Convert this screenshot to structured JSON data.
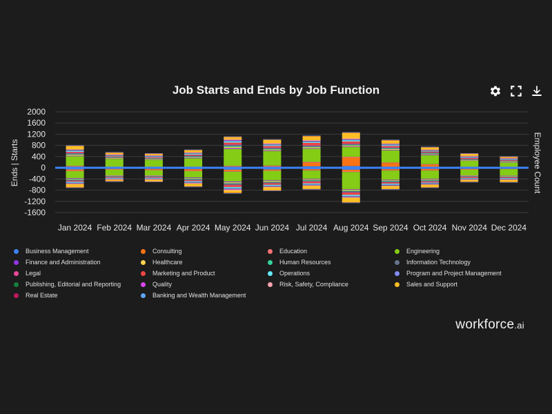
{
  "colors": {
    "background": "#1c1c1c",
    "grid": "#3c3c3c",
    "zero_line": "#3b82f6",
    "text": "#e6e6e6"
  },
  "header": {
    "title": "Job Starts and Ends by Job Function"
  },
  "toolbar": {
    "settings_icon": "gear-icon",
    "fullscreen_icon": "expand-icon",
    "download_icon": "download-icon"
  },
  "brand": {
    "name": "workforce",
    "suffix": ".ai"
  },
  "chart_data": {
    "type": "bar",
    "stacked": true,
    "title": "Job Starts and Ends by Job Function",
    "xlabel": "",
    "ylabel": "Ends | Starts",
    "y2label": "Employee Count",
    "ylim": [
      -1600,
      2000
    ],
    "yticks": [
      2000,
      1600,
      1200,
      800,
      400,
      0,
      -400,
      -800,
      -1200,
      -1600
    ],
    "categories": [
      "Jan 2024",
      "Feb 2024",
      "Mar 2024",
      "Apr 2024",
      "May 2024",
      "Jun 2024",
      "Jul 2024",
      "Aug 2024",
      "Sep 2024",
      "Oct 2024",
      "Nov 2024",
      "Dec 2024"
    ],
    "legend_position": "bottom",
    "series": [
      {
        "name": "Business Management",
        "color": "#3b82f6",
        "starts": [
          40,
          20,
          20,
          20,
          30,
          40,
          50,
          60,
          40,
          30,
          20,
          20
        ],
        "ends": [
          -60,
          -40,
          -40,
          -50,
          -70,
          -60,
          -50,
          -70,
          -50,
          -40,
          -40,
          -20
        ]
      },
      {
        "name": "Consulting",
        "color": "#f97316",
        "starts": [
          10,
          10,
          10,
          10,
          20,
          20,
          130,
          300,
          130,
          80,
          10,
          10
        ],
        "ends": [
          -40,
          -20,
          -30,
          -50,
          -40,
          -30,
          -30,
          -50,
          -30,
          -40,
          -20,
          -20
        ]
      },
      {
        "name": "Education",
        "color": "#f87171",
        "starts": [
          20,
          10,
          10,
          10,
          20,
          20,
          30,
          30,
          20,
          20,
          10,
          10
        ],
        "ends": [
          -20,
          -10,
          -20,
          -20,
          -30,
          -20,
          -20,
          -30,
          -20,
          -20,
          -10,
          -10
        ]
      },
      {
        "name": "Engineering",
        "color": "#84cc16",
        "starts": [
          340,
          280,
          250,
          300,
          600,
          520,
          470,
          350,
          430,
          320,
          210,
          150
        ],
        "ends": [
          -250,
          -200,
          -180,
          -230,
          -350,
          -340,
          -300,
          -620,
          -330,
          -300,
          -200,
          -230
        ]
      },
      {
        "name": "Finance and Administration",
        "color": "#9333ea",
        "starts": [
          20,
          10,
          10,
          20,
          30,
          20,
          20,
          20,
          20,
          20,
          10,
          10
        ],
        "ends": [
          -20,
          -10,
          -10,
          -20,
          -30,
          -20,
          -20,
          -20,
          -20,
          -20,
          -10,
          -10
        ]
      },
      {
        "name": "Healthcare",
        "color": "#fcd34d",
        "starts": [
          30,
          20,
          20,
          20,
          40,
          30,
          30,
          30,
          30,
          20,
          20,
          20
        ],
        "ends": [
          -20,
          -20,
          -20,
          -20,
          -30,
          -30,
          -20,
          -30,
          -20,
          -20,
          -20,
          -20
        ]
      },
      {
        "name": "Human Resources",
        "color": "#34d399",
        "starts": [
          20,
          10,
          10,
          20,
          30,
          20,
          20,
          20,
          20,
          20,
          10,
          10
        ],
        "ends": [
          -20,
          -10,
          -10,
          -20,
          -20,
          -20,
          -20,
          -20,
          -20,
          -20,
          -10,
          -10
        ]
      },
      {
        "name": "Information Technology",
        "color": "#64748b",
        "starts": [
          40,
          20,
          20,
          30,
          50,
          40,
          40,
          40,
          30,
          30,
          20,
          20
        ],
        "ends": [
          -30,
          -20,
          -20,
          -30,
          -40,
          -30,
          -30,
          -40,
          -30,
          -30,
          -20,
          -20
        ]
      },
      {
        "name": "Legal",
        "color": "#ec4899",
        "starts": [
          20,
          10,
          10,
          10,
          20,
          20,
          20,
          20,
          20,
          10,
          10,
          10
        ],
        "ends": [
          -10,
          -10,
          -10,
          -10,
          -20,
          -10,
          -10,
          -20,
          -10,
          -10,
          -10,
          -10
        ]
      },
      {
        "name": "Marketing and Product",
        "color": "#ef4444",
        "starts": [
          30,
          20,
          20,
          30,
          60,
          50,
          80,
          70,
          40,
          30,
          30,
          20
        ],
        "ends": [
          -30,
          -20,
          -20,
          -30,
          -60,
          -50,
          -60,
          -70,
          -40,
          -30,
          -30,
          -20
        ]
      },
      {
        "name": "Operations",
        "color": "#67e8f9",
        "starts": [
          30,
          20,
          20,
          30,
          40,
          30,
          30,
          40,
          30,
          20,
          20,
          20
        ],
        "ends": [
          -30,
          -20,
          -20,
          -30,
          -40,
          -30,
          -30,
          -40,
          -30,
          -20,
          -20,
          -20
        ]
      },
      {
        "name": "Program and Project Management",
        "color": "#818cf8",
        "starts": [
          20,
          10,
          10,
          10,
          20,
          20,
          20,
          20,
          20,
          10,
          10,
          10
        ],
        "ends": [
          -20,
          -10,
          -10,
          -20,
          -20,
          -20,
          -20,
          -20,
          -20,
          -20,
          -10,
          -10
        ]
      },
      {
        "name": "Publishing, Editorial and Reporting",
        "color": "#15803d",
        "starts": [
          10,
          10,
          10,
          10,
          10,
          10,
          10,
          10,
          10,
          10,
          10,
          10
        ],
        "ends": [
          -10,
          -10,
          -10,
          -10,
          -10,
          -10,
          -10,
          -10,
          -10,
          -10,
          -10,
          -10
        ]
      },
      {
        "name": "Quality",
        "color": "#d946ef",
        "starts": [
          10,
          10,
          10,
          10,
          20,
          10,
          10,
          10,
          10,
          10,
          10,
          10
        ],
        "ends": [
          -10,
          -10,
          -10,
          -10,
          -20,
          -10,
          -10,
          -10,
          -10,
          -10,
          -10,
          -10
        ]
      },
      {
        "name": "Risk, Safety, Compliance",
        "color": "#fda4af",
        "starts": [
          20,
          20,
          20,
          20,
          30,
          30,
          30,
          30,
          20,
          20,
          30,
          20
        ],
        "ends": [
          -20,
          -20,
          -20,
          -20,
          -30,
          -20,
          -20,
          -30,
          -20,
          -20,
          -20,
          -20
        ]
      },
      {
        "name": "Sales and Support",
        "color": "#fbbf24",
        "starts": [
          120,
          60,
          50,
          80,
          80,
          120,
          140,
          200,
          110,
          80,
          70,
          40
        ],
        "ends": [
          -110,
          -50,
          -60,
          -100,
          -90,
          -110,
          -110,
          -160,
          -100,
          -90,
          -60,
          -70
        ]
      },
      {
        "name": "Real Estate",
        "color": "#be185d",
        "starts": [
          10,
          10,
          10,
          10,
          10,
          10,
          10,
          10,
          10,
          10,
          10,
          10
        ],
        "ends": [
          -10,
          -10,
          -10,
          -10,
          -10,
          -10,
          -10,
          -10,
          -10,
          -10,
          -10,
          -10
        ]
      },
      {
        "name": "Banking and Wealth Management",
        "color": "#60a5fa",
        "starts": [
          10,
          10,
          10,
          10,
          10,
          10,
          10,
          10,
          10,
          10,
          10,
          10
        ],
        "ends": [
          -10,
          -10,
          -10,
          -10,
          -10,
          -10,
          -10,
          -10,
          -10,
          -10,
          -10,
          -10
        ]
      }
    ],
    "employee_count": [
      0,
      0,
      0,
      0,
      0,
      0,
      0,
      0,
      0,
      0,
      0,
      0
    ]
  }
}
